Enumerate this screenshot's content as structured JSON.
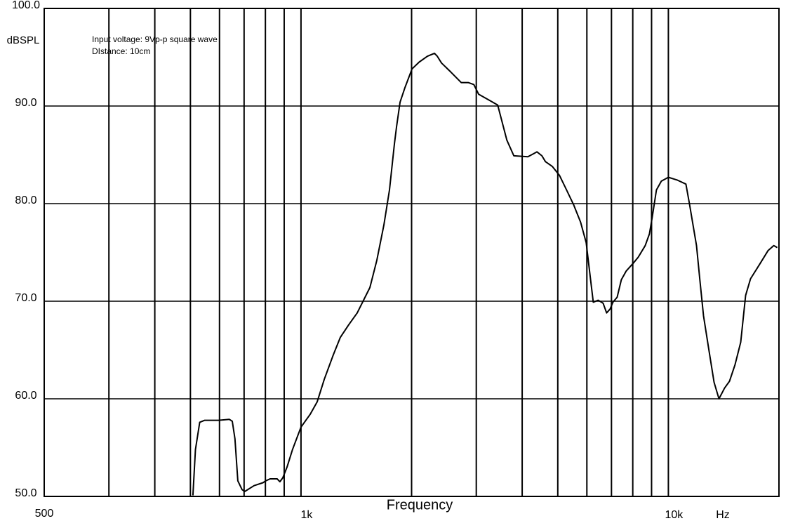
{
  "chart_data": {
    "type": "line",
    "x_label": "Frequency",
    "y_label": "dBSPL",
    "x_unit": "Hz",
    "x_left_label": "500",
    "annotations": [
      "Input voltage: 9Vp-p square wave",
      "DIstance: 10cm"
    ],
    "x_log": true,
    "grid": true,
    "xlim": [
      200,
      20000
    ],
    "ylim": [
      50,
      100
    ],
    "xticks": [
      {
        "value": 1000,
        "label": "1k"
      },
      {
        "value": 10000,
        "label": "10k"
      }
    ],
    "xgrid": [
      300,
      400,
      500,
      600,
      700,
      800,
      900,
      1000,
      2000,
      3000,
      4000,
      5000,
      6000,
      7000,
      8000,
      9000,
      10000
    ],
    "yticks": [
      {
        "value": 50,
        "label": "50.0"
      },
      {
        "value": 60,
        "label": "60.0"
      },
      {
        "value": 70,
        "label": "70.0"
      },
      {
        "value": 80,
        "label": "80.0"
      },
      {
        "value": 90,
        "label": "90.0"
      },
      {
        "value": 100,
        "label": "100.0"
      }
    ],
    "x": [
      508,
      516,
      530,
      547,
      597,
      638,
      650,
      661,
      673,
      691,
      703,
      745,
      788,
      802,
      824,
      861,
      876,
      892,
      916,
      948,
      1000,
      1059,
      1107,
      1157,
      1224,
      1280,
      1349,
      1422,
      1540,
      1609,
      1681,
      1741,
      1796,
      1820,
      1861,
      1919,
      2005,
      2096,
      2209,
      2308,
      2349,
      2413,
      2555,
      2729,
      2852,
      2954,
      3046,
      3254,
      3431,
      3554,
      3634,
      3797,
      4146,
      4389,
      4527,
      4627,
      4836,
      5053,
      5283,
      5520,
      5768,
      5975,
      6164,
      6245,
      6441,
      6643,
      6790,
      6941,
      7064,
      7253,
      7447,
      7680,
      8026,
      8277,
      8649,
      8881,
      9036,
      9279,
      9570,
      10000,
      10590,
      11164,
      11411,
      11926,
      12190,
      12462,
      12853,
      13315,
      13731,
      14223,
      14669,
      15189,
      15739,
      16232,
      16740,
      17728,
      18691,
      19359,
      19790
    ],
    "series": [
      {
        "color": "#000000",
        "values": [
          50.1,
          54.8,
          57.6,
          57.8,
          57.8,
          57.9,
          57.7,
          55.9,
          51.6,
          50.7,
          50.5,
          51.1,
          51.4,
          51.6,
          51.8,
          51.8,
          51.5,
          51.9,
          53.0,
          54.8,
          57.1,
          58.4,
          59.7,
          62.0,
          64.5,
          66.3,
          67.6,
          68.8,
          71.4,
          74.2,
          77.8,
          81.4,
          86.1,
          87.9,
          90.4,
          91.9,
          93.8,
          94.5,
          95.1,
          95.4,
          95.1,
          94.4,
          93.5,
          92.4,
          92.4,
          92.2,
          91.2,
          90.6,
          90.1,
          87.9,
          86.5,
          84.9,
          84.8,
          85.3,
          84.9,
          84.3,
          83.8,
          82.9,
          81.4,
          79.9,
          78.1,
          76.0,
          71.7,
          69.9,
          70.1,
          69.8,
          68.8,
          69.2,
          69.9,
          70.4,
          72.2,
          73.1,
          73.9,
          74.5,
          75.7,
          76.9,
          78.6,
          81.4,
          82.3,
          82.7,
          82.4,
          82.0,
          80.0,
          75.7,
          72.1,
          68.5,
          65.3,
          61.7,
          60.0,
          61.1,
          61.8,
          63.5,
          65.8,
          70.6,
          72.3,
          73.8,
          75.2,
          75.7,
          75.5
        ]
      }
    ]
  }
}
